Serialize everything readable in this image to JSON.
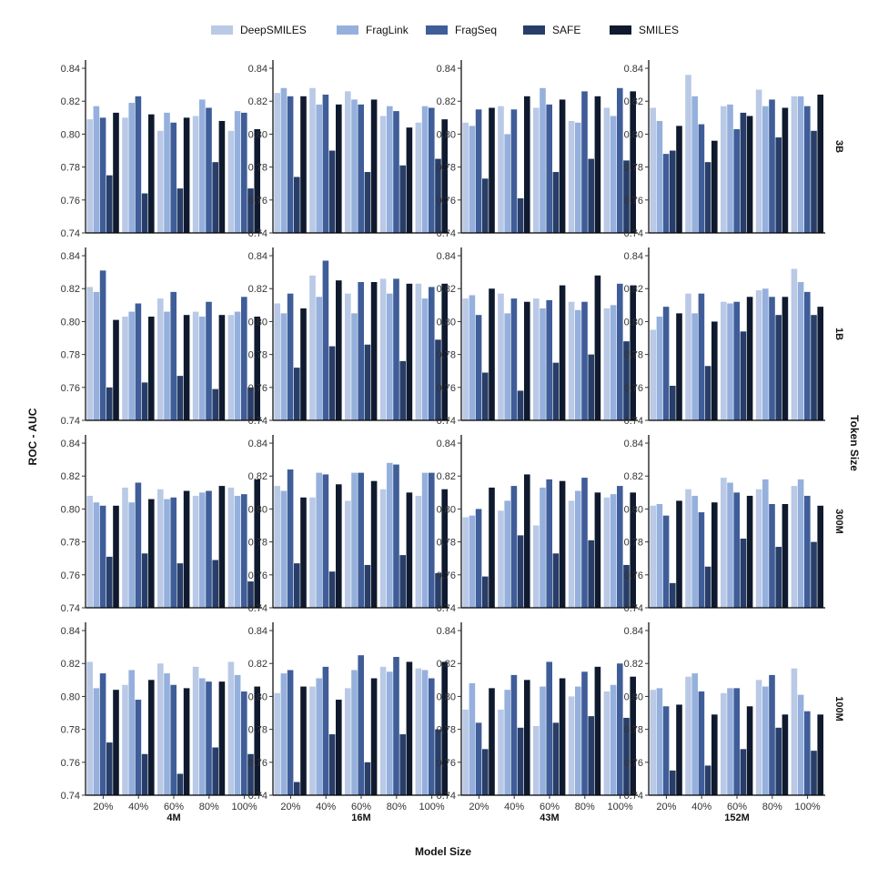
{
  "chart_data": {
    "type": "bar",
    "xlabel": "Model Size",
    "ylabel": "ROC - AUC",
    "facet_row_label": "Token Size",
    "ylim": [
      0.74,
      0.845
    ],
    "yticks": [
      0.74,
      0.76,
      0.78,
      0.8,
      0.82,
      0.84
    ],
    "grid": false,
    "legend_position": "top",
    "series": [
      {
        "name": "DeepSMILES",
        "color": "#b9c9e6"
      },
      {
        "name": "FragLink",
        "color": "#95b0dc"
      },
      {
        "name": "FragSeq",
        "color": "#3f5d98"
      },
      {
        "name": "SAFE",
        "color": "#283e68"
      },
      {
        "name": "SMILES",
        "color": "#0f1a2e"
      }
    ],
    "categories": [
      "20%",
      "40%",
      "60%",
      "80%",
      "100%"
    ],
    "columns": [
      "4M",
      "16M",
      "43M",
      "152M"
    ],
    "rows": [
      "3B",
      "1B",
      "300M",
      "100M"
    ],
    "panels": [
      [
        [
          [
            0.809,
            0.817,
            0.81,
            0.775,
            0.813
          ],
          [
            0.81,
            0.819,
            0.823,
            0.764,
            0.812
          ],
          [
            0.802,
            0.813,
            0.807,
            0.767,
            0.81
          ],
          [
            0.811,
            0.821,
            0.816,
            0.783,
            0.808
          ],
          [
            0.802,
            0.814,
            0.813,
            0.767,
            0.803
          ]
        ],
        [
          [
            0.825,
            0.828,
            0.823,
            0.774,
            0.823
          ],
          [
            0.828,
            0.818,
            0.824,
            0.79,
            0.818
          ],
          [
            0.826,
            0.821,
            0.818,
            0.777,
            0.821
          ],
          [
            0.811,
            0.817,
            0.814,
            0.781,
            0.804
          ],
          [
            0.807,
            0.817,
            0.816,
            0.785,
            0.809
          ]
        ],
        [
          [
            0.807,
            0.805,
            0.815,
            0.773,
            0.816
          ],
          [
            0.817,
            0.8,
            0.815,
            0.761,
            0.823
          ],
          [
            0.816,
            0.828,
            0.818,
            0.777,
            0.821
          ],
          [
            0.808,
            0.807,
            0.826,
            0.785,
            0.823
          ],
          [
            0.816,
            0.811,
            0.828,
            0.784,
            0.826
          ]
        ],
        [
          [
            0.816,
            0.808,
            0.788,
            0.79,
            0.805
          ],
          [
            0.836,
            0.823,
            0.806,
            0.783,
            0.796
          ],
          [
            0.817,
            0.818,
            0.803,
            0.813,
            0.811
          ],
          [
            0.827,
            0.817,
            0.821,
            0.798,
            0.816
          ],
          [
            0.823,
            0.823,
            0.817,
            0.802,
            0.824
          ]
        ]
      ],
      [
        [
          [
            0.821,
            0.818,
            0.831,
            0.76,
            0.801
          ],
          [
            0.803,
            0.806,
            0.811,
            0.763,
            0.803
          ],
          [
            0.814,
            0.806,
            0.818,
            0.767,
            0.804
          ],
          [
            0.806,
            0.803,
            0.812,
            0.759,
            0.804
          ],
          [
            0.804,
            0.806,
            0.815,
            0.76,
            0.803
          ]
        ],
        [
          [
            0.811,
            0.805,
            0.817,
            0.772,
            0.808
          ],
          [
            0.828,
            0.815,
            0.837,
            0.785,
            0.825
          ],
          [
            0.817,
            0.805,
            0.824,
            0.786,
            0.824
          ],
          [
            0.826,
            0.817,
            0.826,
            0.776,
            0.823
          ],
          [
            0.823,
            0.814,
            0.821,
            0.789,
            0.823
          ]
        ],
        [
          [
            0.814,
            0.816,
            0.804,
            0.769,
            0.82
          ],
          [
            0.817,
            0.805,
            0.814,
            0.758,
            0.812
          ],
          [
            0.814,
            0.808,
            0.813,
            0.775,
            0.822
          ],
          [
            0.812,
            0.807,
            0.812,
            0.78,
            0.828
          ],
          [
            0.808,
            0.81,
            0.823,
            0.788,
            0.822
          ]
        ],
        [
          [
            0.795,
            0.803,
            0.809,
            0.761,
            0.805
          ],
          [
            0.817,
            0.805,
            0.817,
            0.773,
            0.8
          ],
          [
            0.812,
            0.811,
            0.812,
            0.794,
            0.815
          ],
          [
            0.819,
            0.82,
            0.815,
            0.804,
            0.815
          ],
          [
            0.832,
            0.824,
            0.818,
            0.804,
            0.809
          ]
        ]
      ],
      [
        [
          [
            0.808,
            0.804,
            0.802,
            0.771,
            0.802
          ],
          [
            0.813,
            0.804,
            0.816,
            0.773,
            0.806
          ],
          [
            0.812,
            0.806,
            0.807,
            0.767,
            0.811
          ],
          [
            0.808,
            0.81,
            0.811,
            0.769,
            0.814
          ],
          [
            0.813,
            0.808,
            0.809,
            0.756,
            0.818
          ]
        ],
        [
          [
            0.814,
            0.811,
            0.824,
            0.767,
            0.807
          ],
          [
            0.807,
            0.822,
            0.821,
            0.762,
            0.815
          ],
          [
            0.805,
            0.822,
            0.822,
            0.766,
            0.817
          ],
          [
            0.812,
            0.828,
            0.827,
            0.772,
            0.81
          ],
          [
            0.808,
            0.822,
            0.822,
            0.761,
            0.812
          ]
        ],
        [
          [
            0.795,
            0.796,
            0.8,
            0.759,
            0.813
          ],
          [
            0.799,
            0.805,
            0.814,
            0.784,
            0.821
          ],
          [
            0.79,
            0.813,
            0.818,
            0.773,
            0.817
          ],
          [
            0.805,
            0.811,
            0.819,
            0.781,
            0.81
          ],
          [
            0.807,
            0.809,
            0.814,
            0.766,
            0.81
          ]
        ],
        [
          [
            0.802,
            0.803,
            0.796,
            0.755,
            0.805
          ],
          [
            0.812,
            0.808,
            0.798,
            0.765,
            0.804
          ],
          [
            0.819,
            0.816,
            0.81,
            0.782,
            0.808
          ],
          [
            0.812,
            0.818,
            0.803,
            0.777,
            0.803
          ],
          [
            0.814,
            0.818,
            0.808,
            0.78,
            0.802
          ]
        ]
      ],
      [
        [
          [
            0.821,
            0.805,
            0.814,
            0.772,
            0.804
          ],
          [
            0.807,
            0.816,
            0.798,
            0.765,
            0.81
          ],
          [
            0.82,
            0.814,
            0.807,
            0.753,
            0.805
          ],
          [
            0.818,
            0.811,
            0.809,
            0.769,
            0.809
          ],
          [
            0.821,
            0.813,
            0.803,
            0.765,
            0.806
          ]
        ],
        [
          [
            0.802,
            0.814,
            0.816,
            0.748,
            0.806
          ],
          [
            0.806,
            0.811,
            0.818,
            0.777,
            0.798
          ],
          [
            0.805,
            0.816,
            0.825,
            0.76,
            0.811
          ],
          [
            0.818,
            0.815,
            0.824,
            0.777,
            0.821
          ],
          [
            0.817,
            0.816,
            0.811,
            0.78,
            0.821
          ]
        ],
        [
          [
            0.792,
            0.808,
            0.784,
            0.768,
            0.805
          ],
          [
            0.792,
            0.804,
            0.813,
            0.781,
            0.81
          ],
          [
            0.782,
            0.806,
            0.821,
            0.784,
            0.811
          ],
          [
            0.8,
            0.806,
            0.815,
            0.788,
            0.818
          ],
          [
            0.803,
            0.807,
            0.82,
            0.787,
            0.812
          ]
        ],
        [
          [
            0.804,
            0.805,
            0.794,
            0.755,
            0.795
          ],
          [
            0.812,
            0.814,
            0.803,
            0.758,
            0.789
          ],
          [
            0.802,
            0.805,
            0.805,
            0.768,
            0.794
          ],
          [
            0.81,
            0.806,
            0.813,
            0.781,
            0.789
          ],
          [
            0.817,
            0.801,
            0.791,
            0.767,
            0.789
          ]
        ]
      ]
    ]
  }
}
